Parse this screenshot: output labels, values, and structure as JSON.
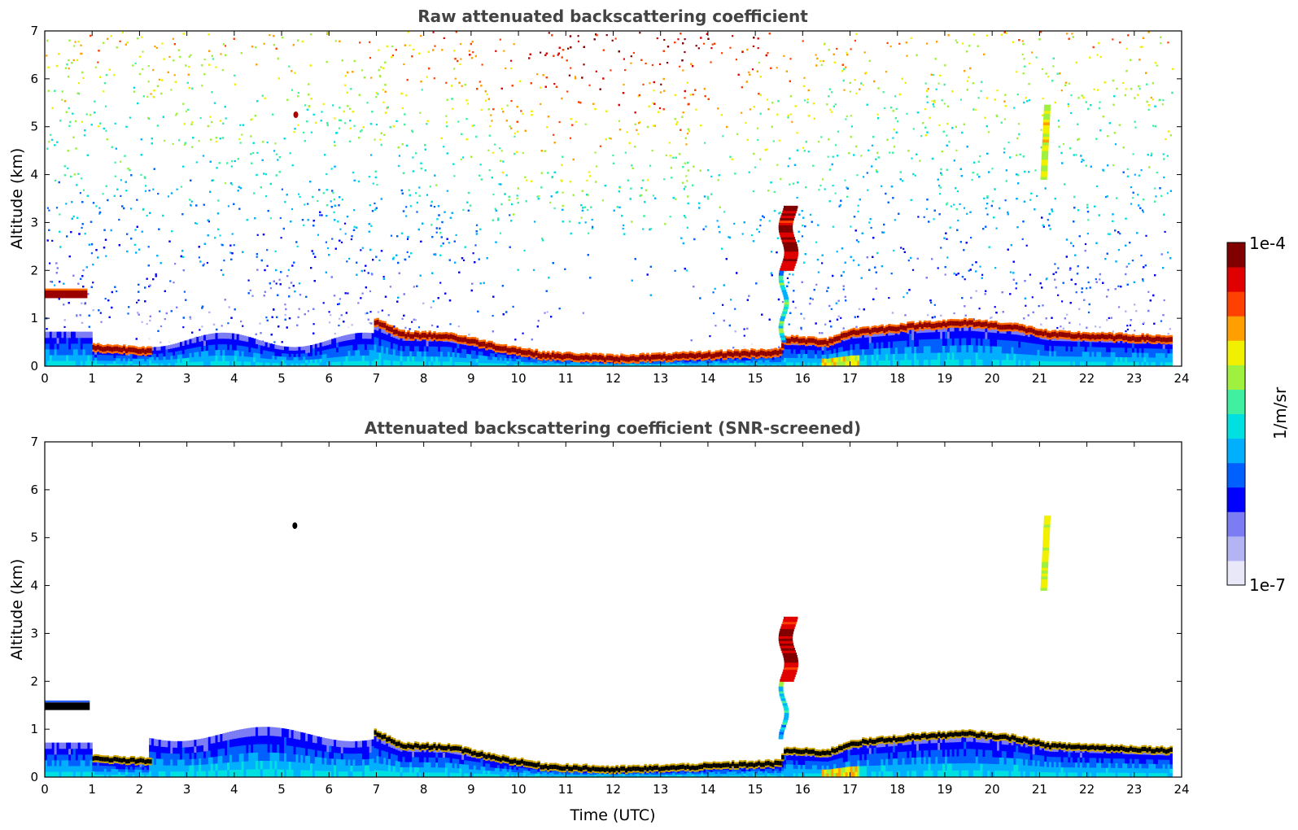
{
  "chart_data": [
    {
      "type": "heatmap",
      "title": "Raw attenuated backscattering coefficient",
      "xlabel": "",
      "ylabel": "Altitude (km)",
      "xlim": [
        0,
        24
      ],
      "ylim": [
        0,
        7
      ],
      "x_ticks": [
        "0",
        "1",
        "2",
        "3",
        "4",
        "5",
        "6",
        "7",
        "8",
        "9",
        "10",
        "11",
        "12",
        "13",
        "14",
        "15",
        "16",
        "17",
        "18",
        "19",
        "20",
        "21",
        "22",
        "23",
        "24"
      ],
      "y_ticks": [
        "0",
        "1",
        "2",
        "3",
        "4",
        "5",
        "6",
        "7"
      ],
      "data_end_x": 23.8,
      "layers": [
        {
          "name": "cloud",
          "points": [
            [
              0,
              1.5
            ],
            [
              0.9,
              1.5
            ]
          ]
        },
        {
          "name": "boundary-layer-top",
          "points": [
            [
              1.0,
              0.38
            ],
            [
              2.2,
              0.32
            ],
            [
              6.9,
              0.95
            ],
            [
              7.5,
              0.65
            ],
            [
              8.5,
              0.62
            ],
            [
              9.5,
              0.4
            ],
            [
              10.5,
              0.22
            ],
            [
              12,
              0.15
            ],
            [
              13.5,
              0.2
            ],
            [
              14.5,
              0.25
            ],
            [
              15.5,
              0.28
            ],
            [
              15.6,
              0.55
            ],
            [
              16.5,
              0.5
            ],
            [
              17,
              0.7
            ],
            [
              18,
              0.8
            ],
            [
              18.5,
              0.85
            ],
            [
              19.5,
              0.9
            ],
            [
              20.5,
              0.8
            ],
            [
              21.2,
              0.65
            ],
            [
              23.8,
              0.55
            ]
          ]
        }
      ],
      "features": [
        {
          "name": "point-cloud",
          "x": 5.3,
          "y": 5.25
        },
        {
          "name": "plume",
          "x": 15.6,
          "y_range": [
            0.5,
            3.3
          ]
        },
        {
          "name": "ice-cloud",
          "x": 21.1,
          "y_range": [
            3.9,
            5.4
          ]
        }
      ]
    },
    {
      "type": "heatmap",
      "title": "Attenuated backscattering coefficient (SNR-screened)",
      "xlabel": "Time (UTC)",
      "ylabel": "Altitude (km)",
      "xlim": [
        0,
        24
      ],
      "ylim": [
        0,
        7
      ],
      "x_ticks": [
        "0",
        "1",
        "2",
        "3",
        "4",
        "5",
        "6",
        "7",
        "8",
        "9",
        "10",
        "11",
        "12",
        "13",
        "14",
        "15",
        "16",
        "17",
        "18",
        "19",
        "20",
        "21",
        "22",
        "23",
        "24"
      ],
      "y_ticks": [
        "0",
        "1",
        "2",
        "3",
        "4",
        "5",
        "6",
        "7"
      ],
      "data_end_x": 23.8,
      "layers": [
        {
          "name": "cloud",
          "points": [
            [
              0,
              1.48
            ],
            [
              0.95,
              1.48
            ]
          ]
        },
        {
          "name": "boundary-layer-top",
          "points": [
            [
              1.0,
              0.38
            ],
            [
              2.2,
              0.32
            ],
            [
              6.9,
              0.95
            ],
            [
              7.5,
              0.65
            ],
            [
              8.5,
              0.62
            ],
            [
              9.5,
              0.4
            ],
            [
              10.5,
              0.22
            ],
            [
              12,
              0.15
            ],
            [
              13.5,
              0.2
            ],
            [
              14.5,
              0.25
            ],
            [
              15.5,
              0.28
            ],
            [
              15.6,
              0.55
            ],
            [
              16.5,
              0.5
            ],
            [
              17,
              0.7
            ],
            [
              18,
              0.8
            ],
            [
              18.5,
              0.85
            ],
            [
              19.5,
              0.9
            ],
            [
              20.5,
              0.8
            ],
            [
              21.2,
              0.65
            ],
            [
              23.8,
              0.55
            ]
          ]
        }
      ],
      "features": [
        {
          "name": "point-cloud",
          "x": 5.28,
          "y": 5.25
        },
        {
          "name": "plume",
          "x": 15.6,
          "y_range": [
            0.8,
            3.3
          ]
        },
        {
          "name": "ice-cloud",
          "x": 21.1,
          "y_range": [
            3.9,
            5.4
          ]
        }
      ]
    }
  ],
  "colorbar": {
    "label": "1/m/sr",
    "max_label": "1e-4",
    "min_label": "1e-7",
    "colormap": "jet",
    "colors": [
      "#e8e8f8",
      "#b4b4f4",
      "#7c7cf4",
      "#0000ff",
      "#0060ff",
      "#00b0ff",
      "#00e0e0",
      "#40f0a0",
      "#a0f040",
      "#f0f000",
      "#ffa000",
      "#ff4000",
      "#e00000",
      "#800000"
    ]
  }
}
